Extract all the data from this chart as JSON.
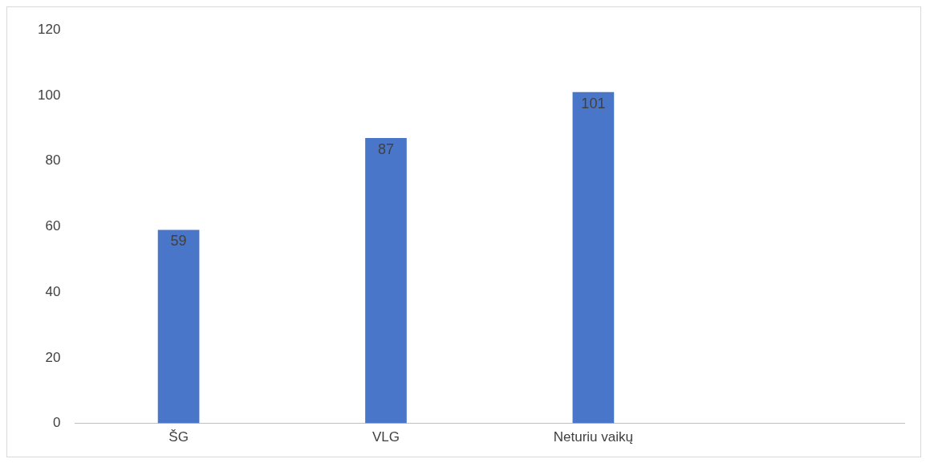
{
  "chart_data": {
    "type": "bar",
    "categories": [
      "ŠG",
      "VLG",
      "Neturiu vaikų",
      null
    ],
    "values": [
      59,
      87,
      101,
      null
    ],
    "color": "#4a76c9",
    "ylim": [
      0,
      120
    ],
    "yticks": [
      0,
      20,
      40,
      60,
      80,
      100,
      120
    ],
    "grid": false,
    "legend": false,
    "data_labels": true
  }
}
